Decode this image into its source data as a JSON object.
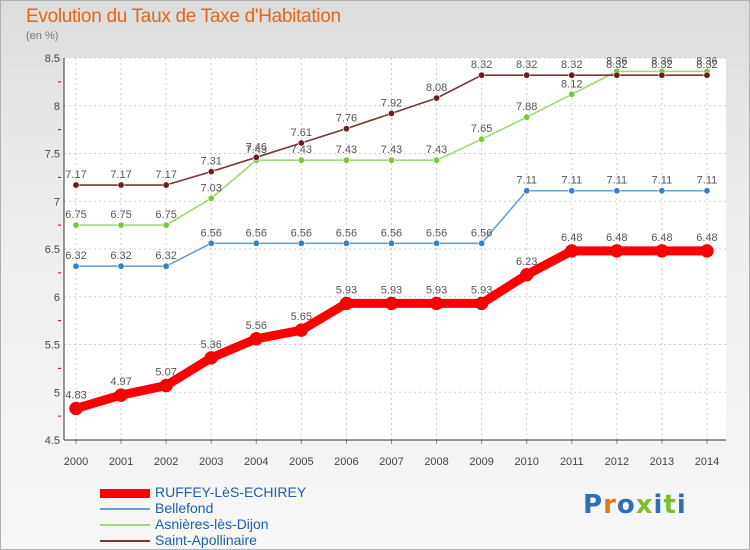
{
  "title": "Evolution du Taux de Taxe d'Habitation",
  "subtitle": "(en %)",
  "logo": {
    "text": "Proxiti",
    "colors": [
      "#2f6fb5",
      "#e07a1a",
      "#2f6fb5",
      "#7bbf2a",
      "#2f6fb5",
      "#7bbf2a",
      "#2f6fb5"
    ]
  },
  "chart_data": {
    "type": "line",
    "x": [
      "2000",
      "2001",
      "2002",
      "2003",
      "2004",
      "2005",
      "2006",
      "2007",
      "2008",
      "2009",
      "2010",
      "2011",
      "2012",
      "2013",
      "2014"
    ],
    "ylim": [
      4.5,
      8.5
    ],
    "yticks": [
      "4.5",
      "5",
      "5.5",
      "6",
      "6.5",
      "7",
      "7.5",
      "8",
      "8.5"
    ],
    "grid": true,
    "legend_position": "bottom-left",
    "series": [
      {
        "name": "RUFFEY-LèS-ECHIREY",
        "color": "#ff0000",
        "marker": "#ff0000",
        "values": [
          4.83,
          4.97,
          5.07,
          5.36,
          5.56,
          5.65,
          5.93,
          5.93,
          5.93,
          5.93,
          6.23,
          6.48,
          6.48,
          6.48,
          6.48
        ],
        "labels": [
          "4.83",
          "4.97",
          "5.07",
          "5.36",
          "5.56",
          "5.65",
          "5.93",
          "5.93",
          "5.93",
          "5.93",
          "6.23",
          "6.48",
          "6.48",
          "6.48",
          "6.48"
        ]
      },
      {
        "name": "Bellefond",
        "color": "#6b9fd0",
        "marker": "#3a7fc4",
        "values": [
          6.32,
          6.32,
          6.32,
          6.56,
          6.56,
          6.56,
          6.56,
          6.56,
          6.56,
          6.56,
          7.11,
          7.11,
          7.11,
          7.11,
          7.11
        ],
        "labels": [
          "6.32",
          "6.32",
          "6.32",
          "6.56",
          "6.56",
          "6.56",
          "6.56",
          "6.56",
          "6.56",
          "6.56",
          "7.11",
          "7.11",
          "7.11",
          "7.11",
          "7.11"
        ]
      },
      {
        "name": "Asnières-lès-Dijon",
        "color": "#9ed872",
        "marker": "#7cc63e",
        "values": [
          6.75,
          6.75,
          6.75,
          7.03,
          7.43,
          7.43,
          7.43,
          7.43,
          7.43,
          7.65,
          7.88,
          8.12,
          8.36,
          8.36,
          8.36
        ],
        "labels": [
          "6.75",
          "6.75",
          "6.75",
          "7.03",
          "7.43",
          "7.43",
          "7.43",
          "7.43",
          "7.43",
          "7.65",
          "7.88",
          "8.12",
          "8.36",
          "8.36",
          "8.36"
        ]
      },
      {
        "name": "Saint-Apollinaire",
        "color": "#7a3535",
        "marker": "#6a1f1f",
        "values": [
          7.17,
          7.17,
          7.17,
          7.31,
          7.46,
          7.61,
          7.76,
          7.92,
          8.08,
          8.32,
          8.32,
          8.32,
          8.32,
          8.32,
          8.32
        ],
        "labels": [
          "7.17",
          "7.17",
          "7.17",
          "7.31",
          "7.46",
          "7.61",
          "7.76",
          "7.92",
          "8.08",
          "8.32",
          "8.32",
          "8.32",
          "8.32",
          "8.32",
          "8.32"
        ]
      }
    ]
  }
}
